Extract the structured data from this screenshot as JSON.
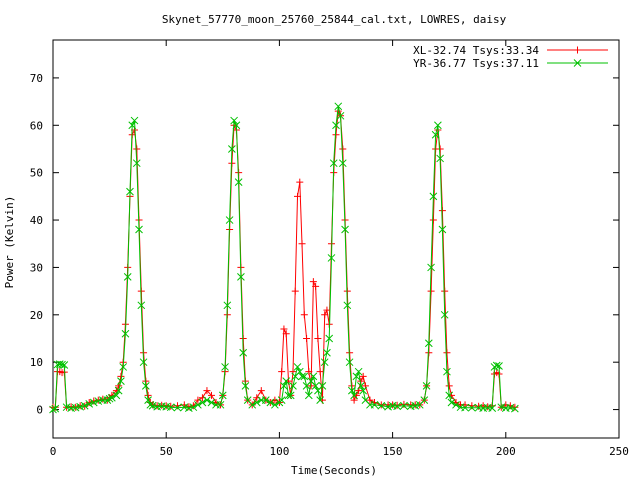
{
  "chart_data": {
    "type": "line",
    "title": "Skynet_57770_moon_25760_25844_cal.txt, LOWRES, daisy",
    "xlabel": "Time(Seconds)",
    "ylabel": "Power (Kelvin)",
    "xlim": [
      0,
      250
    ],
    "ylim": [
      -6,
      78
    ],
    "x_ticks": [
      0,
      50,
      100,
      150,
      200,
      250
    ],
    "y_ticks": [
      0,
      10,
      20,
      30,
      40,
      50,
      60,
      70
    ],
    "legend_position": "top-right",
    "grid": false,
    "series": [
      {
        "name": "XL-32.74 Tsys:33.34",
        "color": "#ff0000",
        "marker": "plus",
        "points": [
          [
            0,
            0.5
          ],
          [
            1,
            0.5
          ],
          [
            2,
            8
          ],
          [
            3,
            8
          ],
          [
            4,
            7.8
          ],
          [
            5,
            7.9
          ],
          [
            6,
            0.5
          ],
          [
            8,
            0.6
          ],
          [
            10,
            0.5
          ],
          [
            12,
            0.8
          ],
          [
            14,
            0.7
          ],
          [
            16,
            1.5
          ],
          [
            18,
            1.8
          ],
          [
            20,
            2
          ],
          [
            22,
            2.2
          ],
          [
            24,
            2
          ],
          [
            25,
            2.5
          ],
          [
            26,
            3
          ],
          [
            28,
            4
          ],
          [
            29,
            5
          ],
          [
            30,
            7
          ],
          [
            31,
            10
          ],
          [
            32,
            18
          ],
          [
            33,
            30
          ],
          [
            34,
            45
          ],
          [
            35,
            58
          ],
          [
            36,
            59
          ],
          [
            37,
            55
          ],
          [
            38,
            40
          ],
          [
            39,
            25
          ],
          [
            40,
            12
          ],
          [
            41,
            6
          ],
          [
            42,
            3
          ],
          [
            43,
            1.5
          ],
          [
            44,
            1
          ],
          [
            46,
            0.8
          ],
          [
            48,
            0.9
          ],
          [
            50,
            0.8
          ],
          [
            52,
            0.7
          ],
          [
            55,
            0.8
          ],
          [
            58,
            1
          ],
          [
            60,
            0.6
          ],
          [
            62,
            0.8
          ],
          [
            64,
            2
          ],
          [
            66,
            2.5
          ],
          [
            68,
            4
          ],
          [
            70,
            3
          ],
          [
            72,
            1.5
          ],
          [
            74,
            1
          ],
          [
            75,
            3
          ],
          [
            76,
            8
          ],
          [
            77,
            20
          ],
          [
            78,
            38
          ],
          [
            79,
            52
          ],
          [
            80,
            60
          ],
          [
            81,
            59
          ],
          [
            82,
            50
          ],
          [
            83,
            30
          ],
          [
            84,
            15
          ],
          [
            85,
            6
          ],
          [
            86,
            2
          ],
          [
            88,
            1
          ],
          [
            90,
            2.5
          ],
          [
            92,
            4
          ],
          [
            94,
            2
          ],
          [
            96,
            1.5
          ],
          [
            98,
            2
          ],
          [
            100,
            1.5
          ],
          [
            101,
            8
          ],
          [
            102,
            17
          ],
          [
            103,
            16
          ],
          [
            104,
            6
          ],
          [
            105,
            3
          ],
          [
            106,
            8
          ],
          [
            107,
            25
          ],
          [
            108,
            45
          ],
          [
            109,
            48
          ],
          [
            110,
            35
          ],
          [
            111,
            20
          ],
          [
            112,
            15
          ],
          [
            113,
            8
          ],
          [
            114,
            5
          ],
          [
            115,
            27
          ],
          [
            116,
            26
          ],
          [
            117,
            15
          ],
          [
            118,
            8
          ],
          [
            119,
            2
          ],
          [
            120,
            20
          ],
          [
            121,
            21
          ],
          [
            122,
            18
          ],
          [
            123,
            35
          ],
          [
            124,
            50
          ],
          [
            125,
            58
          ],
          [
            126,
            63
          ],
          [
            127,
            62
          ],
          [
            128,
            55
          ],
          [
            129,
            40
          ],
          [
            130,
            25
          ],
          [
            131,
            12
          ],
          [
            132,
            5
          ],
          [
            133,
            2
          ],
          [
            134,
            3
          ],
          [
            135,
            4
          ],
          [
            136,
            6
          ],
          [
            137,
            7
          ],
          [
            138,
            5
          ],
          [
            140,
            2
          ],
          [
            142,
            1.5
          ],
          [
            145,
            1
          ],
          [
            148,
            1
          ],
          [
            150,
            1
          ],
          [
            152,
            0.9
          ],
          [
            155,
            1.1
          ],
          [
            158,
            1
          ],
          [
            160,
            1
          ],
          [
            162,
            1
          ],
          [
            164,
            2
          ],
          [
            165,
            5
          ],
          [
            166,
            12
          ],
          [
            167,
            25
          ],
          [
            168,
            40
          ],
          [
            169,
            55
          ],
          [
            170,
            59
          ],
          [
            171,
            55
          ],
          [
            172,
            42
          ],
          [
            173,
            25
          ],
          [
            174,
            12
          ],
          [
            175,
            5
          ],
          [
            176,
            3
          ],
          [
            178,
            1.5
          ],
          [
            180,
            1
          ],
          [
            182,
            1
          ],
          [
            185,
            0.8
          ],
          [
            188,
            0.7
          ],
          [
            190,
            0.8
          ],
          [
            192,
            0.6
          ],
          [
            194,
            0.8
          ],
          [
            195,
            7.5
          ],
          [
            196,
            7.8
          ],
          [
            197,
            7.5
          ],
          [
            198,
            0.5
          ],
          [
            200,
            1
          ],
          [
            202,
            0.8
          ],
          [
            204,
            0.5
          ]
        ]
      },
      {
        "name": "YR-36.77 Tsys:37.11",
        "color": "#00c000",
        "marker": "cross",
        "points": [
          [
            0,
            0
          ],
          [
            1,
            0.2
          ],
          [
            2,
            9.5
          ],
          [
            3,
            9.6
          ],
          [
            4,
            9.5
          ],
          [
            5,
            9.4
          ],
          [
            6,
            0.5
          ],
          [
            8,
            0.3
          ],
          [
            10,
            0.4
          ],
          [
            12,
            0.6
          ],
          [
            14,
            0.8
          ],
          [
            16,
            1.2
          ],
          [
            18,
            1.5
          ],
          [
            20,
            1.8
          ],
          [
            22,
            2
          ],
          [
            24,
            2
          ],
          [
            25,
            2.3
          ],
          [
            26,
            2.5
          ],
          [
            28,
            3
          ],
          [
            29,
            4
          ],
          [
            30,
            6
          ],
          [
            31,
            9
          ],
          [
            32,
            16
          ],
          [
            33,
            28
          ],
          [
            34,
            46
          ],
          [
            35,
            60
          ],
          [
            36,
            61
          ],
          [
            37,
            52
          ],
          [
            38,
            38
          ],
          [
            39,
            22
          ],
          [
            40,
            10
          ],
          [
            41,
            5
          ],
          [
            42,
            2
          ],
          [
            43,
            1
          ],
          [
            44,
            0.8
          ],
          [
            46,
            0.6
          ],
          [
            48,
            0.7
          ],
          [
            50,
            0.6
          ],
          [
            52,
            0.5
          ],
          [
            55,
            0.4
          ],
          [
            58,
            0.5
          ],
          [
            60,
            0.3
          ],
          [
            62,
            0.5
          ],
          [
            64,
            1
          ],
          [
            66,
            1.5
          ],
          [
            68,
            2
          ],
          [
            70,
            1.5
          ],
          [
            72,
            1
          ],
          [
            74,
            1
          ],
          [
            75,
            3
          ],
          [
            76,
            9
          ],
          [
            77,
            22
          ],
          [
            78,
            40
          ],
          [
            79,
            55
          ],
          [
            80,
            61
          ],
          [
            81,
            60
          ],
          [
            82,
            48
          ],
          [
            83,
            28
          ],
          [
            84,
            12
          ],
          [
            85,
            5
          ],
          [
            86,
            2
          ],
          [
            88,
            1
          ],
          [
            90,
            1.5
          ],
          [
            92,
            2
          ],
          [
            94,
            2
          ],
          [
            96,
            1.5
          ],
          [
            98,
            1
          ],
          [
            100,
            1.5
          ],
          [
            101,
            2
          ],
          [
            102,
            5
          ],
          [
            103,
            6
          ],
          [
            104,
            3
          ],
          [
            105,
            3
          ],
          [
            106,
            5
          ],
          [
            107,
            7
          ],
          [
            108,
            9
          ],
          [
            109,
            8
          ],
          [
            110,
            7
          ],
          [
            111,
            7
          ],
          [
            112,
            5
          ],
          [
            113,
            3
          ],
          [
            114,
            6
          ],
          [
            115,
            7
          ],
          [
            116,
            5
          ],
          [
            117,
            4
          ],
          [
            118,
            2
          ],
          [
            119,
            5
          ],
          [
            120,
            10
          ],
          [
            121,
            12
          ],
          [
            122,
            15
          ],
          [
            123,
            32
          ],
          [
            124,
            52
          ],
          [
            125,
            60
          ],
          [
            126,
            64
          ],
          [
            127,
            62
          ],
          [
            128,
            52
          ],
          [
            129,
            38
          ],
          [
            130,
            22
          ],
          [
            131,
            10
          ],
          [
            132,
            4
          ],
          [
            133,
            3
          ],
          [
            134,
            7
          ],
          [
            135,
            8
          ],
          [
            136,
            5
          ],
          [
            137,
            4
          ],
          [
            138,
            2
          ],
          [
            140,
            1
          ],
          [
            142,
            1
          ],
          [
            145,
            0.8
          ],
          [
            148,
            0.6
          ],
          [
            150,
            0.8
          ],
          [
            152,
            0.7
          ],
          [
            155,
            0.8
          ],
          [
            158,
            0.7
          ],
          [
            160,
            0.8
          ],
          [
            162,
            1
          ],
          [
            164,
            2
          ],
          [
            165,
            5
          ],
          [
            166,
            14
          ],
          [
            167,
            30
          ],
          [
            168,
            45
          ],
          [
            169,
            58
          ],
          [
            170,
            60
          ],
          [
            171,
            53
          ],
          [
            172,
            38
          ],
          [
            173,
            20
          ],
          [
            174,
            8
          ],
          [
            175,
            3
          ],
          [
            176,
            1.5
          ],
          [
            178,
            1
          ],
          [
            180,
            0.5
          ],
          [
            182,
            0.4
          ],
          [
            185,
            0.4
          ],
          [
            188,
            0.4
          ],
          [
            190,
            0.3
          ],
          [
            192,
            0.4
          ],
          [
            194,
            0.3
          ],
          [
            195,
            9
          ],
          [
            196,
            9.3
          ],
          [
            197,
            9.2
          ],
          [
            198,
            0.5
          ],
          [
            200,
            0.3
          ],
          [
            202,
            0.4
          ],
          [
            204,
            0.2
          ]
        ]
      }
    ]
  }
}
